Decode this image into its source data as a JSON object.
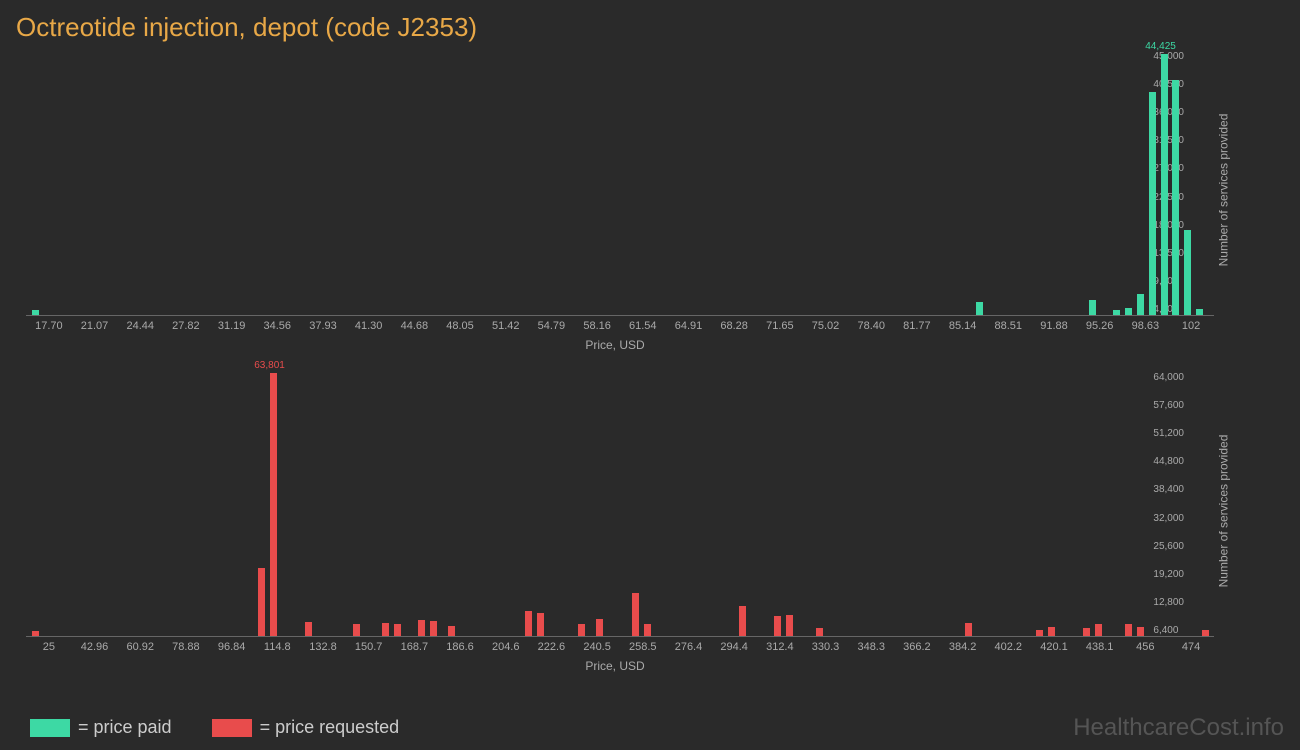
{
  "title": "Octreotide injection, depot (code J2353)",
  "background_color": "#2a2a2a",
  "chart1": {
    "type": "histogram",
    "color": "#3dd9a4",
    "peak_label": "44,425",
    "peak_value": 44425,
    "x_axis_title": "Price, USD",
    "y_axis_title": "Number of services provided",
    "x_labels": [
      "17.70",
      "21.07",
      "24.44",
      "27.82",
      "31.19",
      "34.56",
      "37.93",
      "41.30",
      "44.68",
      "48.05",
      "51.42",
      "54.79",
      "58.16",
      "61.54",
      "64.91",
      "68.28",
      "71.65",
      "75.02",
      "78.40",
      "81.77",
      "85.14",
      "88.51",
      "91.88",
      "95.26",
      "98.63",
      "102"
    ],
    "y_labels": [
      "45,000",
      "40,500",
      "36,000",
      "31,500",
      "27,000",
      "22,500",
      "18,000",
      "13,500",
      "9,000",
      "4,500"
    ],
    "y_max": 45000,
    "bars": [
      {
        "x_pct": 0.5,
        "value": 800
      },
      {
        "x_pct": 80.0,
        "value": 2200
      },
      {
        "x_pct": 89.5,
        "value": 2500
      },
      {
        "x_pct": 91.5,
        "value": 900
      },
      {
        "x_pct": 92.5,
        "value": 1200
      },
      {
        "x_pct": 93.5,
        "value": 3500
      },
      {
        "x_pct": 94.5,
        "value": 38000
      },
      {
        "x_pct": 95.5,
        "value": 44425
      },
      {
        "x_pct": 96.5,
        "value": 40000
      },
      {
        "x_pct": 97.5,
        "value": 14500
      },
      {
        "x_pct": 98.5,
        "value": 1000
      }
    ]
  },
  "chart2": {
    "type": "histogram",
    "color": "#e84c4c",
    "peak_label": "63,801",
    "peak_value": 63801,
    "x_axis_title": "Price, USD",
    "y_axis_title": "Number of services provided",
    "x_labels": [
      "25",
      "42.96",
      "60.92",
      "78.88",
      "96.84",
      "114.8",
      "132.8",
      "150.7",
      "168.7",
      "186.6",
      "204.6",
      "222.6",
      "240.5",
      "258.5",
      "276.4",
      "294.4",
      "312.4",
      "330.3",
      "348.3",
      "366.2",
      "384.2",
      "402.2",
      "420.1",
      "438.1",
      "456",
      "474"
    ],
    "y_labels": [
      "64,000",
      "57,600",
      "51,200",
      "44,800",
      "38,400",
      "32,000",
      "25,600",
      "19,200",
      "12,800",
      "6,400"
    ],
    "y_max": 64000,
    "bars": [
      {
        "x_pct": 0.5,
        "value": 1200
      },
      {
        "x_pct": 19.5,
        "value": 16500
      },
      {
        "x_pct": 20.5,
        "value": 63801
      },
      {
        "x_pct": 23.5,
        "value": 3500
      },
      {
        "x_pct": 27.5,
        "value": 3000
      },
      {
        "x_pct": 30.0,
        "value": 3200
      },
      {
        "x_pct": 31.0,
        "value": 2800
      },
      {
        "x_pct": 33.0,
        "value": 3800
      },
      {
        "x_pct": 34.0,
        "value": 3600
      },
      {
        "x_pct": 35.5,
        "value": 2500
      },
      {
        "x_pct": 42.0,
        "value": 6000
      },
      {
        "x_pct": 43.0,
        "value": 5500
      },
      {
        "x_pct": 46.5,
        "value": 2800
      },
      {
        "x_pct": 48.0,
        "value": 4200
      },
      {
        "x_pct": 51.0,
        "value": 10500
      },
      {
        "x_pct": 52.0,
        "value": 3000
      },
      {
        "x_pct": 60.0,
        "value": 7200
      },
      {
        "x_pct": 63.0,
        "value": 4800
      },
      {
        "x_pct": 64.0,
        "value": 5200
      },
      {
        "x_pct": 66.5,
        "value": 2000
      },
      {
        "x_pct": 79.0,
        "value": 3200
      },
      {
        "x_pct": 85.0,
        "value": 1500
      },
      {
        "x_pct": 86.0,
        "value": 2200
      },
      {
        "x_pct": 89.0,
        "value": 2000
      },
      {
        "x_pct": 90.0,
        "value": 2800
      },
      {
        "x_pct": 92.5,
        "value": 3000
      },
      {
        "x_pct": 93.5,
        "value": 2200
      },
      {
        "x_pct": 99.0,
        "value": 1500
      }
    ]
  },
  "legend": {
    "items": [
      {
        "color": "#3dd9a4",
        "label": "= price paid"
      },
      {
        "color": "#e84c4c",
        "label": "= price requested"
      }
    ]
  },
  "watermark": "HealthcareCost.info"
}
